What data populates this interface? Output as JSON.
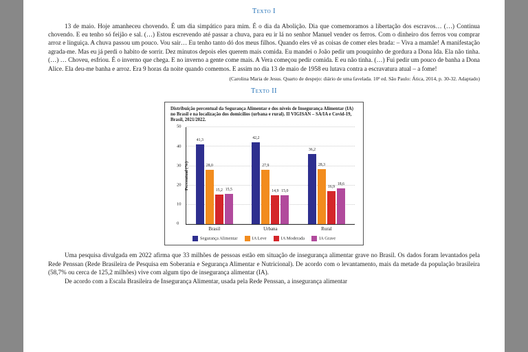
{
  "texto1": {
    "heading": "Texto I",
    "body": "13 de maio. Hoje amanheceu chovendo. É um dia simpático para mim. É o dia da Abolição. Dia que comemoramos a libertação dos escravos… (…) Continua chovendo. E eu tenho só feijão e sal. (…) Estou escrevendo até passar a chuva, para eu ir lá no senhor Manuel vender os ferros. Com o dinheiro dos ferros vou comprar arroz e linguiça. A chuva passou um pouco. Vou sair… Eu tenho tanto dó dos meus filhos. Quando eles vê as coisas de comer eles brada: – Viva a mamãe! A manifestação agrada-me. Mas eu já perdi o habito de sorrir. Dez minutos depois eles querem mais comida. Eu mandei o João pedir um pouquinho de gordura a Dona Ida. Ela não tinha. (…) … Choveu, esfriou. É o inverno que chega. E no inverno a gente come mais. A Vera começou pedir comida. E eu não tinha. (…) Fui pedir um pouco de banha a Dona Alice. Ela deu-me banha e arroz. Era 9 horas da noite quando comemos. E assim no dia 13 de maio de 1958 eu lutava contra a escravatura atual – a fome!",
    "citation": "(Carolina Maria de Jesus. Quarto de despejo: diário de uma favelada. 10ª ed. São Paulo: Ática, 2014, p. 30-32. Adaptado)"
  },
  "texto2": {
    "heading": "Texto II",
    "chart": {
      "type": "bar",
      "title": "Distribuição percentual da Segurança Alimentar e dos níveis de Insegurança Alimentar (IA) no Brasil e na localização dos domicílios (urbana e rural). II VIGISAN – SA/IA e Covid-19, Brasil, 2021/2022.",
      "ylabel": "Percentual (%)",
      "ylim": [
        0,
        50
      ],
      "ytick_step": 10,
      "categories": [
        "Brasil",
        "Urbana",
        "Rural"
      ],
      "series": [
        {
          "name": "Segurança Alimentar",
          "color": "#2e2f8f",
          "values": [
            41.3,
            42.2,
            36.2
          ]
        },
        {
          "name": "IA Leve",
          "color": "#f28c1e",
          "values": [
            28.0,
            27.9,
            28.3
          ]
        },
        {
          "name": "IA Moderada",
          "color": "#d4262a",
          "values": [
            15.2,
            14.9,
            16.9
          ]
        },
        {
          "name": "IA Grave",
          "color": "#b14a9c",
          "values": [
            15.5,
            15.0,
            18.6
          ]
        }
      ],
      "background_color": "#ffffff",
      "grid_color": "#cccccc"
    },
    "para1": "Uma pesquisa divulgada em 2022 afirma que 33 milhões de pessoas estão em situação de insegurança alimentar grave no Brasil. Os dados foram levantados pela Rede Penssan (Rede Brasileira de Pesquisa em Soberania e Segurança Alimentar e Nutricional). De acordo com o levantamento, mais da metade da população brasileira (58,7% ou cerca de 125,2 milhões) vive com algum tipo de insegurança alimentar (IA).",
    "para2": "De acordo com a Escala Brasileira de Insegurança Alimentar, usada pela Rede Penssan, a insegurança alimentar"
  }
}
